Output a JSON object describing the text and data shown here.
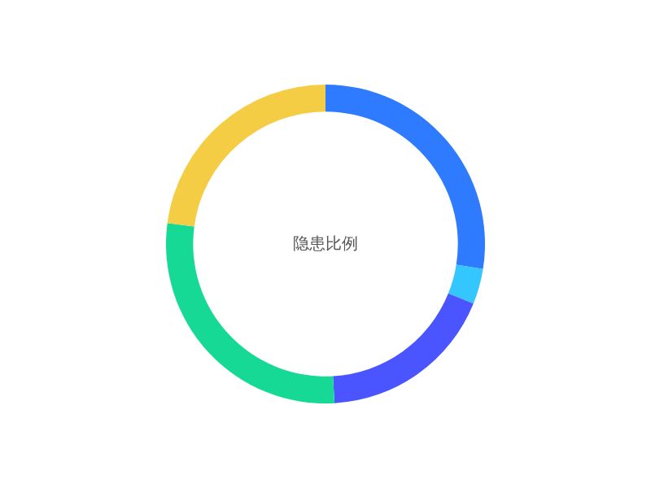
{
  "chart_data": {
    "type": "donut",
    "title": "隐患比例",
    "categories": [
      null,
      null,
      null,
      null,
      null
    ],
    "values": [
      27.5,
      3.6,
      18,
      28,
      22.9
    ],
    "colors": [
      "#2f7bff",
      "#33c6ff",
      "#4a55ff",
      "#16d995",
      "#f5cd45"
    ],
    "legend": false
  }
}
